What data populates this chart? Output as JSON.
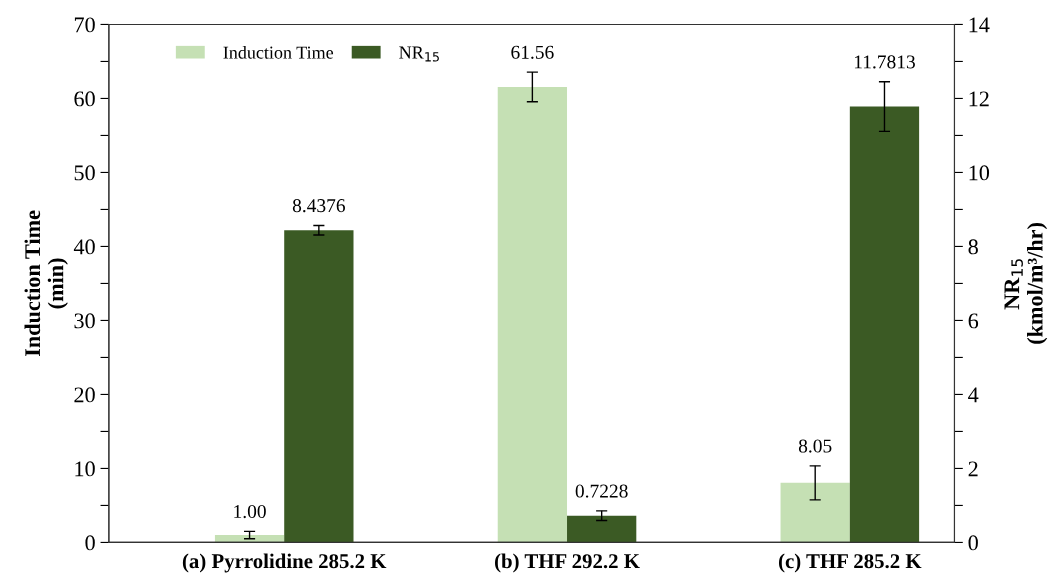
{
  "chart_data": {
    "type": "bar",
    "categories": [
      "(a) Pyrrolidine 285.2 K",
      "(b) THF 292.2 K",
      "(c) THF 285.2 K"
    ],
    "series": [
      {
        "name": "Induction Time",
        "color": "#c5e0b4",
        "values": [
          1.0,
          61.56,
          8.05
        ],
        "errors": [
          0.5,
          2,
          2.3
        ],
        "value_labels": [
          "1.00",
          "61.56",
          "8.05"
        ]
      },
      {
        "name": "NR$_{15}$",
        "color": "#3b5a24",
        "axis": "y2",
        "values": [
          8.4376,
          0.7228,
          11.7813
        ],
        "errors": [
          0.13,
          0.13,
          0.67
        ],
        "value_labels": [
          "8.4376",
          "0.7228",
          "11.7813"
        ]
      }
    ],
    "ylabel": "Induction Time\n(min)",
    "y2label": "NR$_{15}$\n(kmol/m³/hr)",
    "ylim": [
      0,
      70
    ],
    "yticks": [
      0,
      {
        "value": 5,
        "label": null
      },
      10,
      {
        "value": 15,
        "label": null
      },
      20,
      {
        "value": 25,
        "label": null
      },
      30,
      {
        "value": 35,
        "label": null
      },
      40,
      {
        "value": 45,
        "label": null
      },
      50,
      {
        "value": 55,
        "label": null
      },
      60,
      {
        "value": 65,
        "label": null
      },
      70
    ],
    "y2lim": [
      0,
      14
    ],
    "y2ticks": [
      0,
      {
        "value": 1,
        "label": null
      },
      2,
      {
        "value": 3,
        "label": null
      },
      4,
      {
        "value": 5,
        "label": null
      },
      6,
      {
        "value": 7,
        "label": null
      },
      8,
      {
        "value": 9,
        "label": null
      },
      10,
      {
        "value": 11,
        "label": null
      },
      12,
      {
        "value": 13,
        "label": null
      },
      14
    ],
    "grid": false,
    "legend": "top left"
  }
}
